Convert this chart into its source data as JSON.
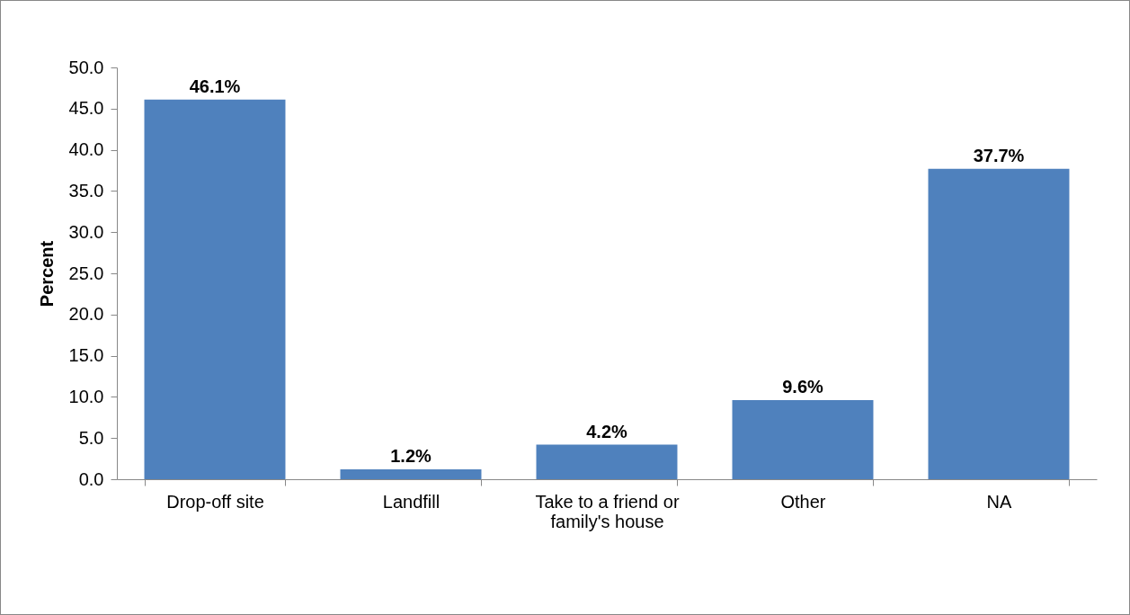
{
  "chart_data": {
    "type": "bar",
    "ylabel": "Percent",
    "categories": [
      "Drop-off site",
      "Landfill",
      "Take to a friend or family's house",
      "Other",
      "NA"
    ],
    "values": [
      46.1,
      1.2,
      4.2,
      9.6,
      37.7
    ],
    "value_labels": [
      "46.1%",
      "1.2%",
      "4.2%",
      "9.6%",
      "37.7%"
    ],
    "color": "#4f81bd",
    "ylim": [
      0,
      50
    ],
    "yticks": [
      {
        "value": 0,
        "label": "0.0"
      },
      {
        "value": 5,
        "label": "5.0"
      },
      {
        "value": 10,
        "label": "10.0"
      },
      {
        "value": 15,
        "label": "15.0"
      },
      {
        "value": 20,
        "label": "20.0"
      },
      {
        "value": 25,
        "label": "25.0"
      },
      {
        "value": 30,
        "label": "30.0"
      },
      {
        "value": 35,
        "label": "35.0"
      },
      {
        "value": 40,
        "label": "40.0"
      },
      {
        "value": 45,
        "label": "45.0"
      },
      {
        "value": 50,
        "label": "50.0"
      }
    ],
    "grid": false
  }
}
